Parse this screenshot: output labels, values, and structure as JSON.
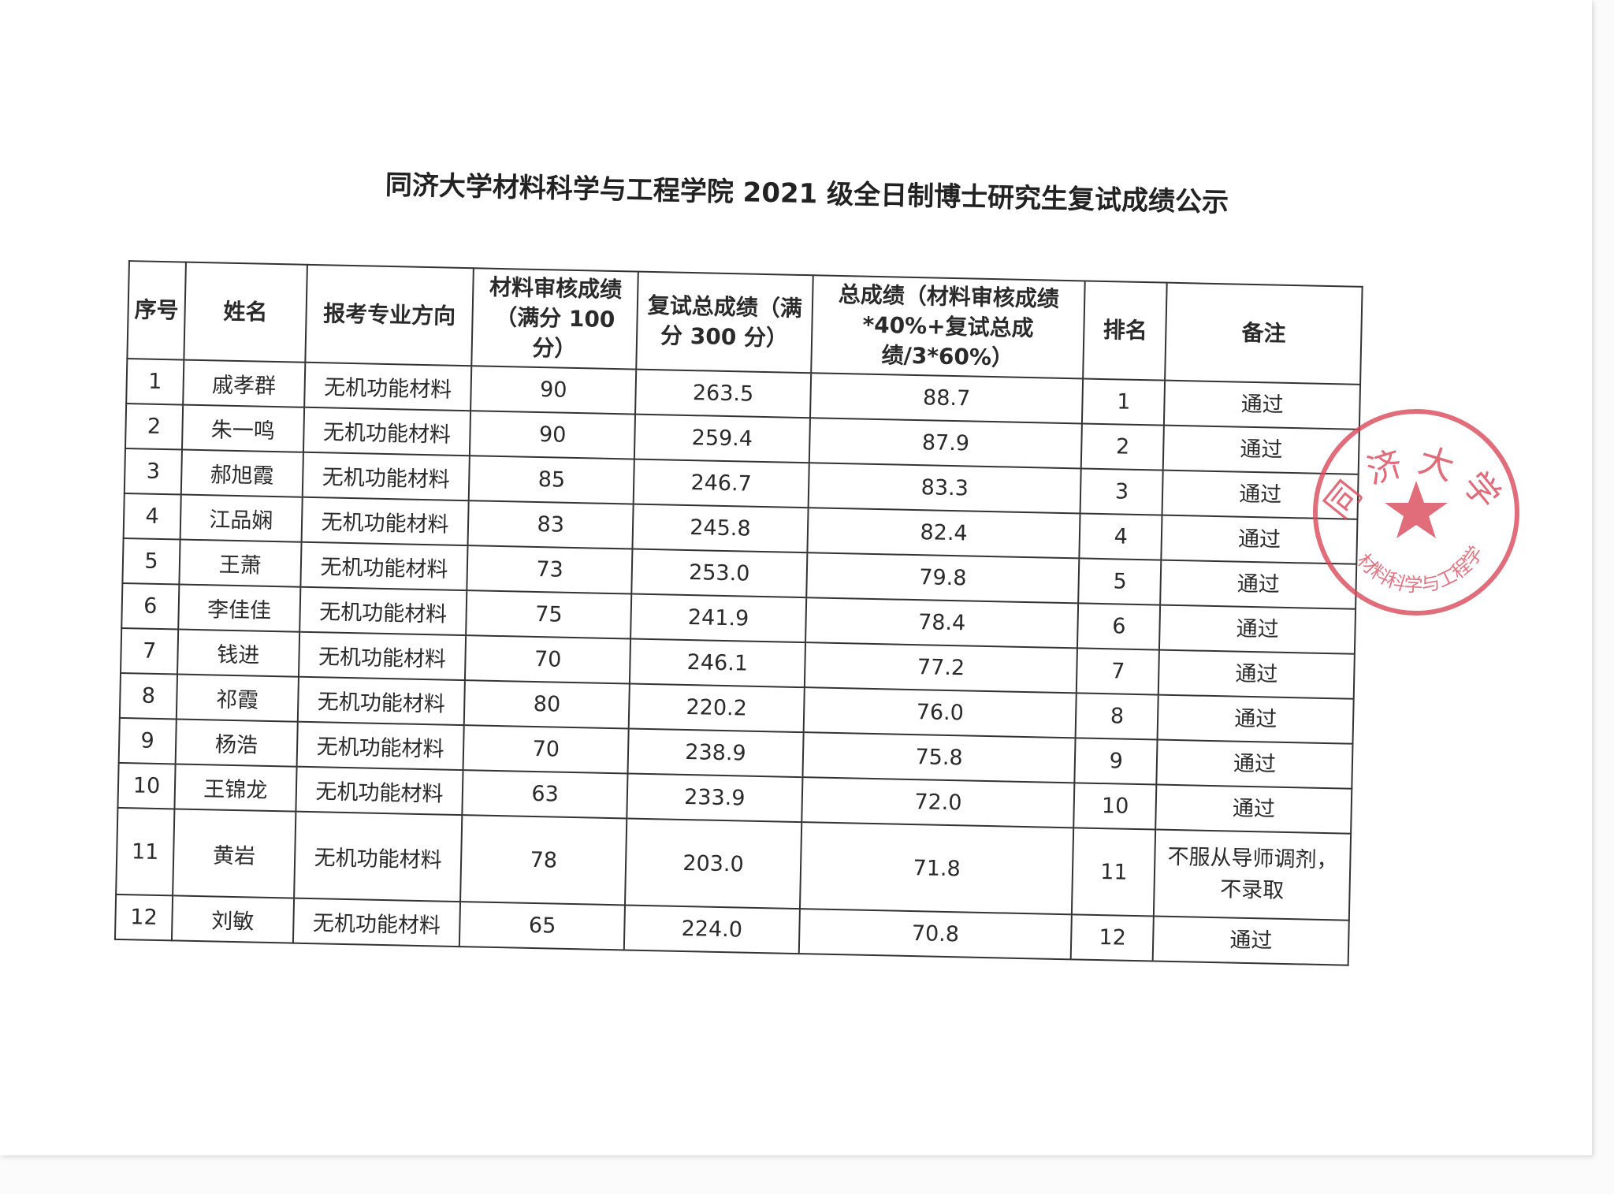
{
  "title": "同济大学材料科学与工程学院 2021 级全日制博士研究生复试成绩公示",
  "headers": [
    "序号",
    "姓名",
    "报考专业方向",
    "材料审核成绩（满分 100 分）",
    "复试总成绩（满分 300 分）",
    "总成绩（材料审核成绩*40%+复试总成绩/3*60%）",
    "排名",
    "备注"
  ],
  "rows": [
    [
      "1",
      "戚孝群",
      "无机功能材料",
      "90",
      "263.5",
      "88.7",
      "1",
      "通过"
    ],
    [
      "2",
      "朱一鸣",
      "无机功能材料",
      "90",
      "259.4",
      "87.9",
      "2",
      "通过"
    ],
    [
      "3",
      "郝旭霞",
      "无机功能材料",
      "85",
      "246.7",
      "83.3",
      "3",
      "通过"
    ],
    [
      "4",
      "江品娴",
      "无机功能材料",
      "83",
      "245.8",
      "82.4",
      "4",
      "通过"
    ],
    [
      "5",
      "王萧",
      "无机功能材料",
      "73",
      "253.0",
      "79.8",
      "5",
      "通过"
    ],
    [
      "6",
      "李佳佳",
      "无机功能材料",
      "75",
      "241.9",
      "78.4",
      "6",
      "通过"
    ],
    [
      "7",
      "钱进",
      "无机功能材料",
      "70",
      "246.1",
      "77.2",
      "7",
      "通过"
    ],
    [
      "8",
      "祁霞",
      "无机功能材料",
      "80",
      "220.2",
      "76.0",
      "8",
      "通过"
    ],
    [
      "9",
      "杨浩",
      "无机功能材料",
      "70",
      "238.9",
      "75.8",
      "9",
      "通过"
    ],
    [
      "10",
      "王锦龙",
      "无机功能材料",
      "63",
      "233.9",
      "72.0",
      "10",
      "通过"
    ],
    [
      "11",
      "黄岩",
      "无机功能材料",
      "78",
      "203.0",
      "71.8",
      "11",
      "不服从导师调剂，不录取"
    ],
    [
      "12",
      "刘敏",
      "无机功能材料",
      "65",
      "224.0",
      "70.8",
      "12",
      "通过"
    ]
  ],
  "stamp": {
    "text_top": "同济大学",
    "text_bottom": "材料科学与工程学院",
    "color": "#d9485a"
  }
}
